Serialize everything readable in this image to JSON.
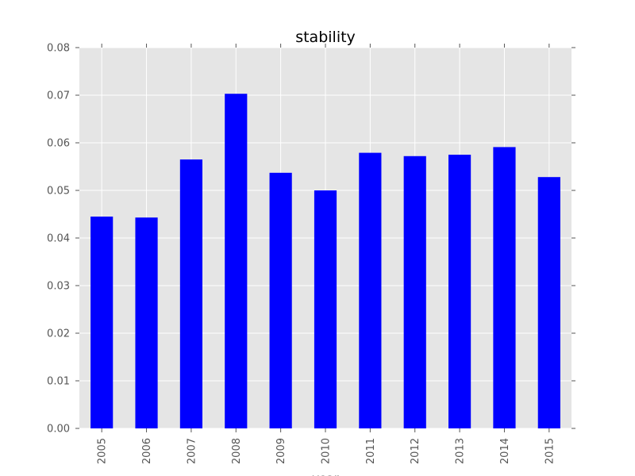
{
  "chart_data": {
    "type": "bar",
    "title": "stability",
    "xlabel": "year",
    "ylabel": "",
    "categories": [
      "2005",
      "2006",
      "2007",
      "2008",
      "2009",
      "2010",
      "2011",
      "2012",
      "2013",
      "2014",
      "2015"
    ],
    "values": [
      0.0445,
      0.0443,
      0.0565,
      0.0703,
      0.0537,
      0.05,
      0.0579,
      0.0572,
      0.0575,
      0.0591,
      0.0528
    ],
    "ylim": [
      0,
      0.08
    ],
    "yticks": [
      "0.00",
      "0.01",
      "0.02",
      "0.03",
      "0.04",
      "0.05",
      "0.06",
      "0.07",
      "0.08"
    ],
    "grid": true,
    "legend": "none",
    "colors": {
      "bar": "#0000ff",
      "plot_bg": "#e5e5e5",
      "grid": "#ffffff"
    }
  }
}
